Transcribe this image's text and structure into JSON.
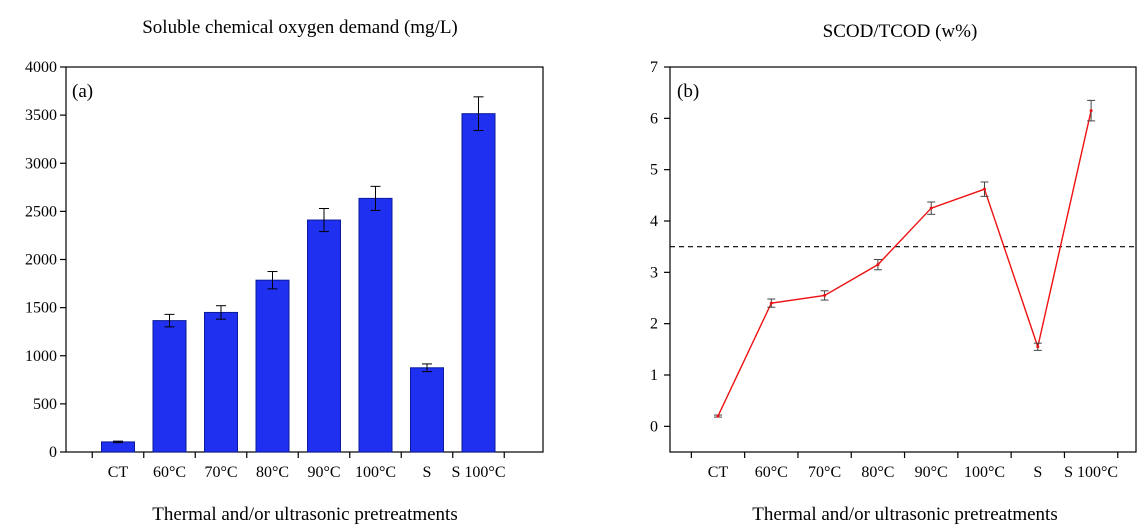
{
  "chart_data": [
    {
      "type": "bar",
      "panel_label": "(a)",
      "title": "Soluble chemical oxygen demand (mg/L)",
      "xlabel": "Thermal and/or ultrasonic pretreatments",
      "ylabel": "",
      "categories": [
        "CT",
        "60°C",
        "70°C",
        "80°C",
        "90°C",
        "100°C",
        "S",
        "S 100°C"
      ],
      "values": [
        105,
        1365,
        1450,
        1785,
        2410,
        2635,
        875,
        3515
      ],
      "errors": [
        8,
        65,
        70,
        90,
        120,
        125,
        40,
        175
      ],
      "ylim": [
        0,
        4000
      ],
      "yticks": [
        0,
        500,
        1000,
        1500,
        2000,
        2500,
        3000,
        3500,
        4000
      ],
      "bar_color": "#1f30f0",
      "grid": false
    },
    {
      "type": "line",
      "panel_label": "(b)",
      "title": "SCOD/TCOD (w%)",
      "xlabel": "Thermal and/or ultrasonic pretreatments",
      "ylabel": "",
      "categories": [
        "CT",
        "60°C",
        "70°C",
        "80°C",
        "90°C",
        "100°C",
        "S",
        "S 100°C"
      ],
      "values": [
        0.2,
        2.4,
        2.55,
        3.15,
        4.25,
        4.62,
        1.55,
        6.15
      ],
      "errors": [
        0.02,
        0.08,
        0.09,
        0.1,
        0.12,
        0.14,
        0.07,
        0.2
      ],
      "ylim": [
        -0.5,
        7
      ],
      "yticks": [
        0,
        1,
        2,
        3,
        4,
        5,
        6,
        7
      ],
      "reference_line": 3.5,
      "line_color": "#ee1111",
      "grid": false
    }
  ]
}
